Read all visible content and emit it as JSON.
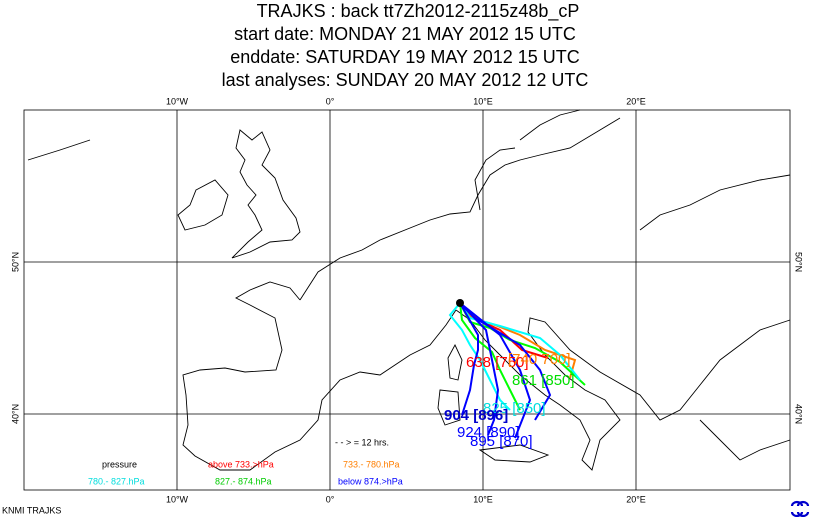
{
  "header": {
    "title": "TRAJKS : back tt7Zh2012-2115z48b_cP",
    "start_date": "start date:  MONDAY    21 MAY       2012 15 UTC",
    "end_date": "enddate:  SATURDAY  19 MAY       2012 15 UTC",
    "last_analyses": "last analyses:  SUNDAY    20 MAY       2012 12 UTC"
  },
  "axes": {
    "longitudes": [
      "10°W",
      "0°",
      "10°E",
      "20°E"
    ],
    "latitudes": [
      "50°N",
      "40°N"
    ]
  },
  "trajectory_labels": [
    "638 [750]",
    "[740   700]",
    "861 [850]",
    "825 [850]",
    "904 [896]",
    "924 [890]",
    "895 [870]"
  ],
  "legend": {
    "time_marker": "- - > = 12 hrs.",
    "heading": "pressure",
    "entries": [
      "above   733.>hPa",
      "733.-    780.hPa",
      "780.-    827.hPa",
      "827.-    874.hPa",
      "below   874.>hPa"
    ]
  },
  "footer": {
    "credit": "KNMI TRAJKS"
  }
}
